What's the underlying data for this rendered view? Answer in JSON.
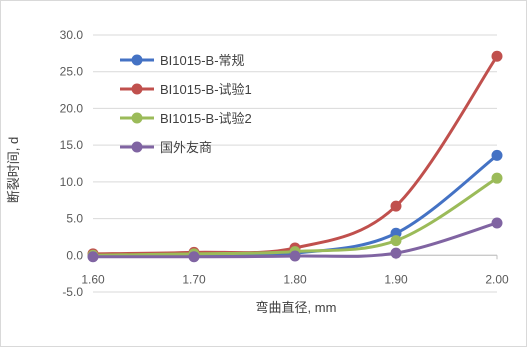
{
  "chart_data": {
    "type": "line",
    "title": "",
    "xlabel": "弯曲直径, mm",
    "ylabel": "断裂时间, d",
    "xlim": [
      1.6,
      2.0
    ],
    "ylim": [
      -5.0,
      30.0
    ],
    "grid": "horizontal",
    "smooth": true,
    "legend_position": "top-left (inside plot)",
    "x": [
      1.6,
      1.7,
      1.8,
      1.9,
      2.0
    ],
    "x_tick_labels": [
      "1.60",
      "1.70",
      "1.80",
      "1.90",
      "2.00"
    ],
    "y_tick_labels": [
      "-5.0",
      "0.0",
      "5.0",
      "10.0",
      "15.0",
      "20.0",
      "25.0",
      "30.0"
    ],
    "y_ticks": [
      -5,
      0,
      5,
      10,
      15,
      20,
      25,
      30
    ],
    "series": [
      {
        "name": "BI1015-B-常规",
        "color": "#4472C4",
        "values": [
          0.0,
          0.1,
          0.3,
          3.0,
          13.6
        ]
      },
      {
        "name": "BI1015-B-试验1",
        "color": "#C0504D",
        "values": [
          0.2,
          0.4,
          1.0,
          6.7,
          27.1
        ]
      },
      {
        "name": "BI1015-B-试验2",
        "color": "#9BBB59",
        "values": [
          0.0,
          0.2,
          0.5,
          2.0,
          10.5
        ]
      },
      {
        "name": "国外友商",
        "color": "#8064A2",
        "values": [
          -0.2,
          -0.2,
          -0.1,
          0.3,
          4.4
        ]
      }
    ]
  }
}
